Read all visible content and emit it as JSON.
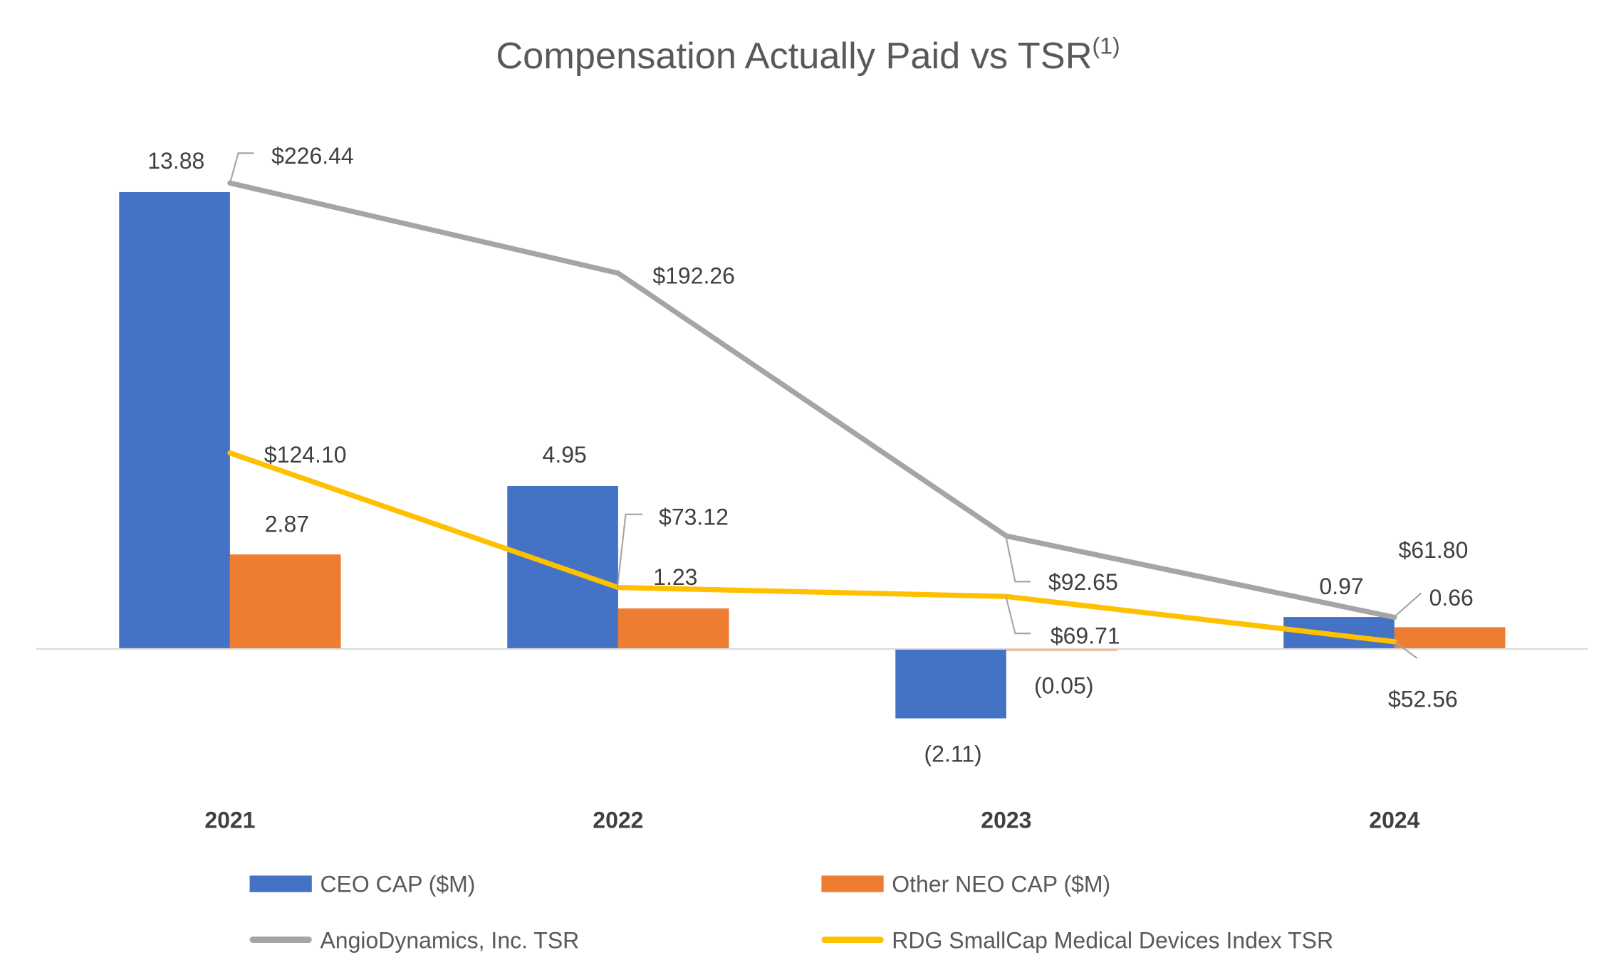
{
  "chart_data": {
    "type": "bar+line",
    "title": "Compensation Actually Paid vs TSR",
    "title_superscript": "(1)",
    "categories": [
      "2021",
      "2022",
      "2023",
      "2024"
    ],
    "bar_series": [
      {
        "name": "CEO CAP ($M)",
        "color": "#4472C4",
        "values": [
          13.88,
          4.95,
          -2.11,
          0.97
        ],
        "labels": [
          "13.88",
          "4.95",
          "(2.11)",
          "0.97"
        ]
      },
      {
        "name": "Other NEO CAP ($M)",
        "color": "#ED7D31",
        "values": [
          2.87,
          1.23,
          -0.05,
          0.66
        ],
        "labels": [
          "2.87",
          "1.23",
          "(0.05)",
          "0.66"
        ]
      }
    ],
    "line_series": [
      {
        "name": "AngioDynamics, Inc. TSR",
        "color": "#A5A5A5",
        "axis": "secondary",
        "values": [
          226.44,
          192.26,
          92.65,
          61.8
        ],
        "labels": [
          "$226.44",
          "$192.26",
          "$92.65",
          "$61.80"
        ]
      },
      {
        "name": "RDG SmallCap Medical Devices Index TSR",
        "color": "#FFC000",
        "axis": "secondary",
        "values": [
          124.1,
          73.12,
          69.71,
          52.56
        ],
        "labels": [
          "$124.10",
          "$73.12",
          "$69.71",
          "$52.56"
        ]
      }
    ],
    "legend_position": "bottom",
    "grid": false
  }
}
